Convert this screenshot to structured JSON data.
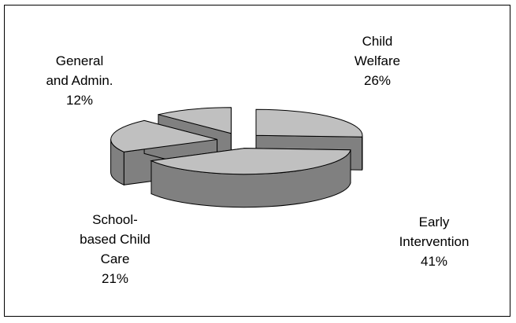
{
  "chart_data": {
    "type": "pie",
    "style": "3d-exploded",
    "slices": [
      {
        "name": "Child Welfare",
        "label_lines": [
          "Child",
          "Welfare"
        ],
        "percent_text": "26%",
        "value": 26
      },
      {
        "name": "Early Intervention",
        "label_lines": [
          "Early",
          "Intervention"
        ],
        "percent_text": "41%",
        "value": 41
      },
      {
        "name": "School-based Child Care",
        "label_lines": [
          "School-",
          "based Child",
          "Care"
        ],
        "percent_text": "21%",
        "value": 21
      },
      {
        "name": "General and Admin.",
        "label_lines": [
          "General",
          "and Admin."
        ],
        "percent_text": "12%",
        "value": 12
      }
    ],
    "legend": "none"
  },
  "colors": {
    "top": "#c0c0c0",
    "side": "#808080",
    "outline": "#000000",
    "background": "#ffffff"
  }
}
